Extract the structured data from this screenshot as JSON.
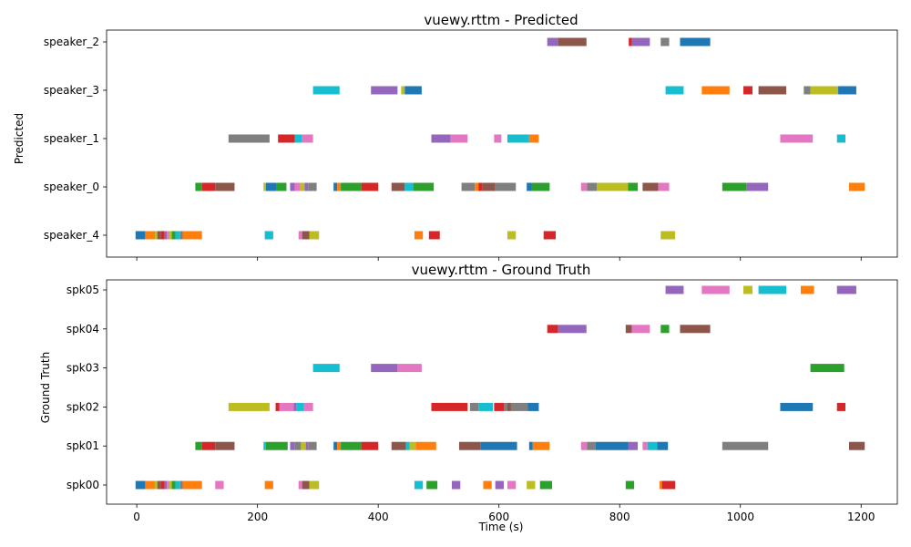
{
  "figure": {
    "xlabel": "Time (s)"
  },
  "colors": {
    "tab:blue": "#1f77b4",
    "tab:orange": "#ff7f0e",
    "tab:green": "#2ca02c",
    "tab:red": "#d62728",
    "tab:purple": "#9467bd",
    "tab:brown": "#8c564b",
    "tab:pink": "#e377c2",
    "tab:gray": "#7f7f7f",
    "tab:olive": "#bcbd22",
    "tab:cyan": "#17becf"
  },
  "chart_data": [
    {
      "type": "bar",
      "title": "vuewy.rttm - Predicted",
      "xlabel": "",
      "ylabel": "Predicted",
      "xlim": [
        -50,
        1260
      ],
      "xticks": [
        0,
        200,
        400,
        600,
        800,
        1000,
        1200
      ],
      "show_xtick_labels": false,
      "grid": false,
      "categories": [
        "speaker_2",
        "speaker_3",
        "speaker_1",
        "speaker_0",
        "speaker_4"
      ],
      "segments": [
        [
          "speaker_2",
          680,
          698,
          "tab:purple"
        ],
        [
          "speaker_2",
          698,
          745,
          "tab:brown"
        ],
        [
          "speaker_2",
          815,
          820,
          "tab:red"
        ],
        [
          "speaker_2",
          820,
          850,
          "tab:purple"
        ],
        [
          "speaker_2",
          868,
          882,
          "tab:gray"
        ],
        [
          "speaker_2",
          900,
          950,
          "tab:blue"
        ],
        [
          "speaker_3",
          292,
          336,
          "tab:cyan"
        ],
        [
          "speaker_3",
          388,
          432,
          "tab:purple"
        ],
        [
          "speaker_3",
          438,
          444,
          "tab:olive"
        ],
        [
          "speaker_3",
          444,
          472,
          "tab:blue"
        ],
        [
          "speaker_3",
          876,
          906,
          "tab:cyan"
        ],
        [
          "speaker_3",
          936,
          982,
          "tab:orange"
        ],
        [
          "speaker_3",
          1005,
          1020,
          "tab:red"
        ],
        [
          "speaker_3",
          1030,
          1076,
          "tab:brown"
        ],
        [
          "speaker_3",
          1105,
          1116,
          "tab:gray"
        ],
        [
          "speaker_3",
          1116,
          1162,
          "tab:olive"
        ],
        [
          "speaker_3",
          1162,
          1192,
          "tab:blue"
        ],
        [
          "speaker_1",
          152,
          220,
          "tab:gray"
        ],
        [
          "speaker_1",
          234,
          262,
          "tab:red"
        ],
        [
          "speaker_1",
          262,
          274,
          "tab:cyan"
        ],
        [
          "speaker_1",
          274,
          292,
          "tab:pink"
        ],
        [
          "speaker_1",
          488,
          520,
          "tab:purple"
        ],
        [
          "speaker_1",
          520,
          548,
          "tab:pink"
        ],
        [
          "speaker_1",
          592,
          604,
          "tab:pink"
        ],
        [
          "speaker_1",
          614,
          650,
          "tab:cyan"
        ],
        [
          "speaker_1",
          650,
          666,
          "tab:orange"
        ],
        [
          "speaker_1",
          1066,
          1120,
          "tab:pink"
        ],
        [
          "speaker_1",
          1160,
          1174,
          "tab:cyan"
        ],
        [
          "speaker_0",
          97,
          108,
          "tab:green"
        ],
        [
          "speaker_0",
          108,
          130,
          "tab:red"
        ],
        [
          "speaker_0",
          130,
          162,
          "tab:brown"
        ],
        [
          "speaker_0",
          210,
          214,
          "tab:olive"
        ],
        [
          "speaker_0",
          214,
          232,
          "tab:blue"
        ],
        [
          "speaker_0",
          232,
          248,
          "tab:green"
        ],
        [
          "speaker_0",
          254,
          262,
          "tab:purple"
        ],
        [
          "speaker_0",
          262,
          270,
          "tab:pink"
        ],
        [
          "speaker_0",
          270,
          278,
          "tab:olive"
        ],
        [
          "speaker_0",
          278,
          284,
          "tab:purple"
        ],
        [
          "speaker_0",
          284,
          298,
          "tab:gray"
        ],
        [
          "speaker_0",
          326,
          332,
          "tab:blue"
        ],
        [
          "speaker_0",
          332,
          338,
          "tab:orange"
        ],
        [
          "speaker_0",
          338,
          372,
          "tab:green"
        ],
        [
          "speaker_0",
          372,
          400,
          "tab:red"
        ],
        [
          "speaker_0",
          422,
          444,
          "tab:brown"
        ],
        [
          "speaker_0",
          444,
          458,
          "tab:cyan"
        ],
        [
          "speaker_0",
          458,
          492,
          "tab:green"
        ],
        [
          "speaker_0",
          538,
          560,
          "tab:gray"
        ],
        [
          "speaker_0",
          560,
          566,
          "tab:orange"
        ],
        [
          "speaker_0",
          566,
          572,
          "tab:red"
        ],
        [
          "speaker_0",
          572,
          594,
          "tab:brown"
        ],
        [
          "speaker_0",
          594,
          628,
          "tab:gray"
        ],
        [
          "speaker_0",
          646,
          654,
          "tab:blue"
        ],
        [
          "speaker_0",
          654,
          684,
          "tab:green"
        ],
        [
          "speaker_0",
          736,
          746,
          "tab:pink"
        ],
        [
          "speaker_0",
          746,
          762,
          "tab:gray"
        ],
        [
          "speaker_0",
          762,
          814,
          "tab:olive"
        ],
        [
          "speaker_0",
          814,
          830,
          "tab:green"
        ],
        [
          "speaker_0",
          838,
          864,
          "tab:brown"
        ],
        [
          "speaker_0",
          864,
          882,
          "tab:pink"
        ],
        [
          "speaker_0",
          970,
          1010,
          "tab:green"
        ],
        [
          "speaker_0",
          1010,
          1046,
          "tab:purple"
        ],
        [
          "speaker_0",
          1180,
          1206,
          "tab:orange"
        ],
        [
          "speaker_4",
          -2,
          14,
          "tab:blue"
        ],
        [
          "speaker_4",
          14,
          30,
          "tab:orange"
        ],
        [
          "speaker_4",
          30,
          34,
          "tab:olive"
        ],
        [
          "speaker_4",
          34,
          40,
          "tab:brown"
        ],
        [
          "speaker_4",
          40,
          46,
          "tab:red"
        ],
        [
          "speaker_4",
          46,
          50,
          "tab:purple"
        ],
        [
          "speaker_4",
          50,
          54,
          "tab:pink"
        ],
        [
          "speaker_4",
          54,
          58,
          "tab:olive"
        ],
        [
          "speaker_4",
          58,
          64,
          "tab:green"
        ],
        [
          "speaker_4",
          64,
          72,
          "tab:cyan"
        ],
        [
          "speaker_4",
          72,
          76,
          "tab:gray"
        ],
        [
          "speaker_4",
          76,
          108,
          "tab:orange"
        ],
        [
          "speaker_4",
          212,
          226,
          "tab:cyan"
        ],
        [
          "speaker_4",
          268,
          274,
          "tab:pink"
        ],
        [
          "speaker_4",
          274,
          286,
          "tab:brown"
        ],
        [
          "speaker_4",
          286,
          302,
          "tab:olive"
        ],
        [
          "speaker_4",
          460,
          474,
          "tab:orange"
        ],
        [
          "speaker_4",
          484,
          502,
          "tab:red"
        ],
        [
          "speaker_4",
          614,
          628,
          "tab:olive"
        ],
        [
          "speaker_4",
          674,
          694,
          "tab:red"
        ],
        [
          "speaker_4",
          868,
          892,
          "tab:olive"
        ]
      ]
    },
    {
      "type": "bar",
      "title": "vuewy.rttm - Ground Truth",
      "xlabel": "Time (s)",
      "ylabel": "Ground Truth",
      "xlim": [
        -50,
        1260
      ],
      "xticks": [
        0,
        200,
        400,
        600,
        800,
        1000,
        1200
      ],
      "show_xtick_labels": true,
      "grid": false,
      "categories": [
        "spk05",
        "spk04",
        "spk03",
        "spk02",
        "spk01",
        "spk00"
      ],
      "segments": [
        [
          "spk05",
          876,
          906,
          "tab:purple"
        ],
        [
          "spk05",
          936,
          982,
          "tab:pink"
        ],
        [
          "spk05",
          1005,
          1020,
          "tab:olive"
        ],
        [
          "spk05",
          1030,
          1076,
          "tab:cyan"
        ],
        [
          "spk05",
          1100,
          1122,
          "tab:orange"
        ],
        [
          "spk05",
          1160,
          1192,
          "tab:purple"
        ],
        [
          "spk04",
          680,
          698,
          "tab:red"
        ],
        [
          "spk04",
          698,
          745,
          "tab:purple"
        ],
        [
          "spk04",
          810,
          820,
          "tab:brown"
        ],
        [
          "spk04",
          820,
          850,
          "tab:pink"
        ],
        [
          "spk04",
          868,
          882,
          "tab:green"
        ],
        [
          "spk04",
          900,
          950,
          "tab:brown"
        ],
        [
          "spk03",
          292,
          336,
          "tab:cyan"
        ],
        [
          "spk03",
          388,
          432,
          "tab:purple"
        ],
        [
          "spk03",
          432,
          472,
          "tab:pink"
        ],
        [
          "spk03",
          1116,
          1172,
          "tab:green"
        ],
        [
          "spk02",
          152,
          220,
          "tab:olive"
        ],
        [
          "spk02",
          230,
          236,
          "tab:red"
        ],
        [
          "spk02",
          236,
          260,
          "tab:pink"
        ],
        [
          "spk02",
          260,
          264,
          "tab:purple"
        ],
        [
          "spk02",
          264,
          276,
          "tab:cyan"
        ],
        [
          "spk02",
          276,
          282,
          "tab:pink"
        ],
        [
          "spk02",
          282,
          292,
          "tab:pink"
        ],
        [
          "spk02",
          488,
          548,
          "tab:red"
        ],
        [
          "spk02",
          552,
          566,
          "tab:gray"
        ],
        [
          "spk02",
          566,
          590,
          "tab:cyan"
        ],
        [
          "spk02",
          592,
          608,
          "tab:red"
        ],
        [
          "spk02",
          608,
          614,
          "tab:gray"
        ],
        [
          "spk02",
          614,
          620,
          "tab:brown"
        ],
        [
          "spk02",
          620,
          648,
          "tab:gray"
        ],
        [
          "spk02",
          648,
          666,
          "tab:blue"
        ],
        [
          "spk02",
          1066,
          1120,
          "tab:blue"
        ],
        [
          "spk02",
          1160,
          1174,
          "tab:red"
        ],
        [
          "spk01",
          97,
          108,
          "tab:green"
        ],
        [
          "spk01",
          108,
          130,
          "tab:red"
        ],
        [
          "spk01",
          130,
          162,
          "tab:brown"
        ],
        [
          "spk01",
          210,
          214,
          "tab:cyan"
        ],
        [
          "spk01",
          214,
          250,
          "tab:green"
        ],
        [
          "spk01",
          254,
          262,
          "tab:purple"
        ],
        [
          "spk01",
          262,
          272,
          "tab:gray"
        ],
        [
          "spk01",
          272,
          280,
          "tab:olive"
        ],
        [
          "spk01",
          280,
          284,
          "tab:purple"
        ],
        [
          "spk01",
          284,
          298,
          "tab:gray"
        ],
        [
          "spk01",
          326,
          332,
          "tab:blue"
        ],
        [
          "spk01",
          332,
          338,
          "tab:orange"
        ],
        [
          "spk01",
          338,
          372,
          "tab:green"
        ],
        [
          "spk01",
          372,
          400,
          "tab:red"
        ],
        [
          "spk01",
          422,
          446,
          "tab:brown"
        ],
        [
          "spk01",
          446,
          452,
          "tab:cyan"
        ],
        [
          "spk01",
          452,
          462,
          "tab:olive"
        ],
        [
          "spk01",
          462,
          496,
          "tab:orange"
        ],
        [
          "spk01",
          534,
          570,
          "tab:brown"
        ],
        [
          "spk01",
          570,
          630,
          "tab:blue"
        ],
        [
          "spk01",
          650,
          656,
          "tab:blue"
        ],
        [
          "spk01",
          656,
          684,
          "tab:orange"
        ],
        [
          "spk01",
          736,
          746,
          "tab:pink"
        ],
        [
          "spk01",
          746,
          760,
          "tab:gray"
        ],
        [
          "spk01",
          760,
          814,
          "tab:blue"
        ],
        [
          "spk01",
          814,
          830,
          "tab:purple"
        ],
        [
          "spk01",
          838,
          846,
          "tab:pink"
        ],
        [
          "spk01",
          846,
          862,
          "tab:cyan"
        ],
        [
          "spk01",
          862,
          880,
          "tab:blue"
        ],
        [
          "spk01",
          970,
          1046,
          "tab:gray"
        ],
        [
          "spk01",
          1180,
          1206,
          "tab:brown"
        ],
        [
          "spk00",
          -2,
          14,
          "tab:blue"
        ],
        [
          "spk00",
          14,
          30,
          "tab:orange"
        ],
        [
          "spk00",
          30,
          34,
          "tab:olive"
        ],
        [
          "spk00",
          34,
          40,
          "tab:brown"
        ],
        [
          "spk00",
          40,
          46,
          "tab:red"
        ],
        [
          "spk00",
          46,
          50,
          "tab:purple"
        ],
        [
          "spk00",
          50,
          54,
          "tab:pink"
        ],
        [
          "spk00",
          54,
          58,
          "tab:olive"
        ],
        [
          "spk00",
          58,
          64,
          "tab:green"
        ],
        [
          "spk00",
          64,
          72,
          "tab:cyan"
        ],
        [
          "spk00",
          72,
          76,
          "tab:gray"
        ],
        [
          "spk00",
          76,
          108,
          "tab:orange"
        ],
        [
          "spk00",
          130,
          144,
          "tab:pink"
        ],
        [
          "spk00",
          212,
          226,
          "tab:orange"
        ],
        [
          "spk00",
          268,
          274,
          "tab:pink"
        ],
        [
          "spk00",
          274,
          286,
          "tab:brown"
        ],
        [
          "spk00",
          286,
          302,
          "tab:olive"
        ],
        [
          "spk00",
          460,
          474,
          "tab:cyan"
        ],
        [
          "spk00",
          480,
          498,
          "tab:green"
        ],
        [
          "spk00",
          522,
          536,
          "tab:purple"
        ],
        [
          "spk00",
          574,
          588,
          "tab:orange"
        ],
        [
          "spk00",
          594,
          608,
          "tab:purple"
        ],
        [
          "spk00",
          614,
          628,
          "tab:pink"
        ],
        [
          "spk00",
          646,
          660,
          "tab:olive"
        ],
        [
          "spk00",
          668,
          688,
          "tab:green"
        ],
        [
          "spk00",
          810,
          824,
          "tab:green"
        ],
        [
          "spk00",
          866,
          870,
          "tab:orange"
        ],
        [
          "spk00",
          870,
          892,
          "tab:red"
        ]
      ]
    }
  ]
}
